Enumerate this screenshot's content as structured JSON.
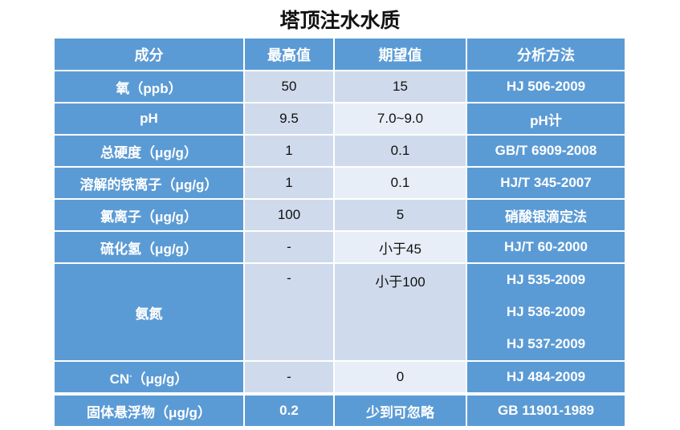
{
  "title": "塔顶注水水质",
  "headers": [
    "成分",
    "最高值",
    "期望值",
    "分析方法"
  ],
  "rows": [
    {
      "name": "氧（ppb）",
      "max": "50",
      "expected": "15",
      "method": "HJ 506-2009"
    },
    {
      "name": "pH",
      "max": "9.5",
      "expected": "7.0~9.0",
      "method": "pH计"
    },
    {
      "name": "总硬度（μg/g）",
      "max": "1",
      "expected": "0.1",
      "method": "GB/T 6909-2008"
    },
    {
      "name": "溶解的铁离子（μg/g）",
      "max": "1",
      "expected": "0.1",
      "method": "HJ/T 345-2007"
    },
    {
      "name": "氯离子（μg/g）",
      "max": "100",
      "expected": "5",
      "method": "硝酸银滴定法"
    },
    {
      "name": "硫化氢（μg/g）",
      "max": "-",
      "expected": "小于45",
      "method": "HJ/T 60-2000"
    },
    {
      "name": "氨氮",
      "max": "-",
      "expected": "小于100",
      "methods": [
        "HJ 535-2009",
        "HJ 536-2009",
        "HJ 537-2009"
      ]
    },
    {
      "name_base": "CN",
      "name_sup": "-",
      "name_unit": "（μg/g）",
      "max": "-",
      "expected": "0",
      "method": "HJ 484-2009"
    },
    {
      "name": "固体悬浮物（μg/g）",
      "max": "0.2",
      "expected": "少到可忽略",
      "method": "GB 11901-1989"
    }
  ],
  "colors": {
    "header": "#5b9bd5",
    "cell_dark": "#cfdbec",
    "cell_light": "#e8eef7"
  }
}
